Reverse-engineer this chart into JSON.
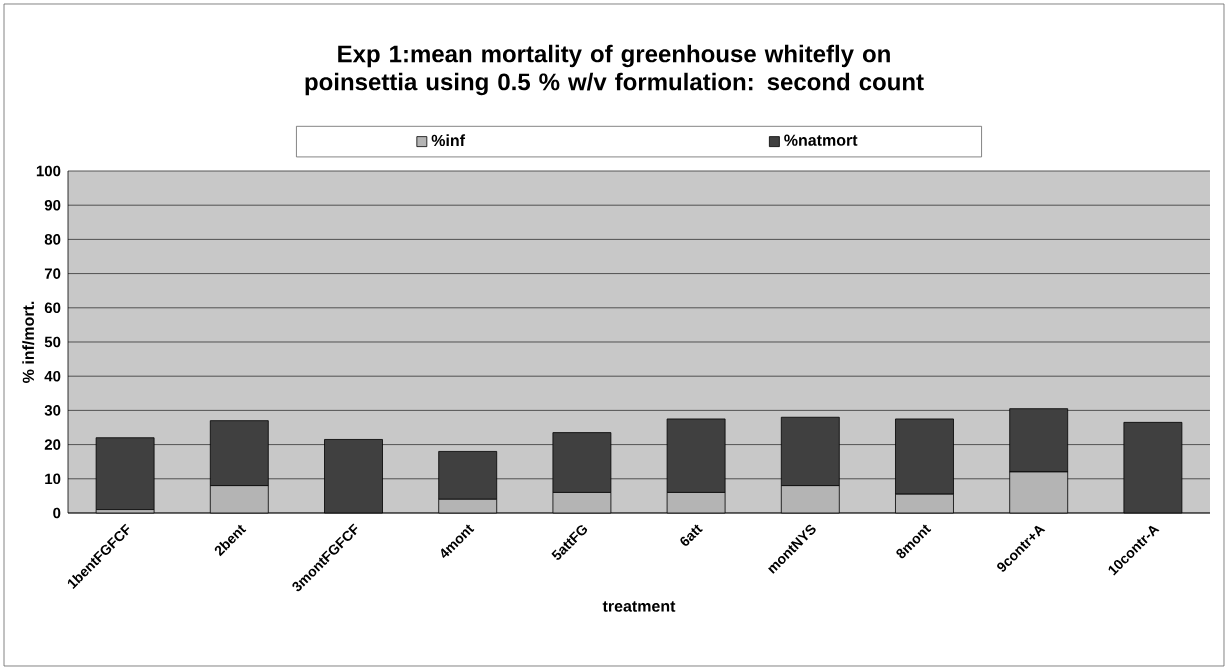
{
  "chart_data": {
    "type": "bar",
    "stacked": true,
    "title": "Exp 1:mean mortality of greenhouse whitefly on poinsettia using 0.5 % w/v formulation: second count",
    "xlabel": "treatment",
    "ylabel": "% inf/mort.",
    "categories": [
      "1bentFGFCF",
      "2bent",
      "3montFGFCF",
      "4mont",
      "5attFG",
      "6att",
      "montNYS",
      "8mont",
      "9contr+A",
      "10contr-A"
    ],
    "series": [
      {
        "name": "%inf",
        "color": "#b4b4b4",
        "values": [
          1,
          8,
          0,
          4,
          6,
          6,
          8,
          5.5,
          12,
          0
        ]
      },
      {
        "name": "%natmort",
        "color": "#404040",
        "values": [
          21,
          19,
          21.5,
          14,
          17.5,
          21.5,
          20,
          22,
          18.5,
          26.5
        ]
      }
    ],
    "ylim": [
      0,
      100
    ],
    "yticks": [
      0,
      10,
      20,
      30,
      40,
      50,
      60,
      70,
      80,
      90,
      100
    ],
    "grid": "y",
    "legend": "top"
  }
}
